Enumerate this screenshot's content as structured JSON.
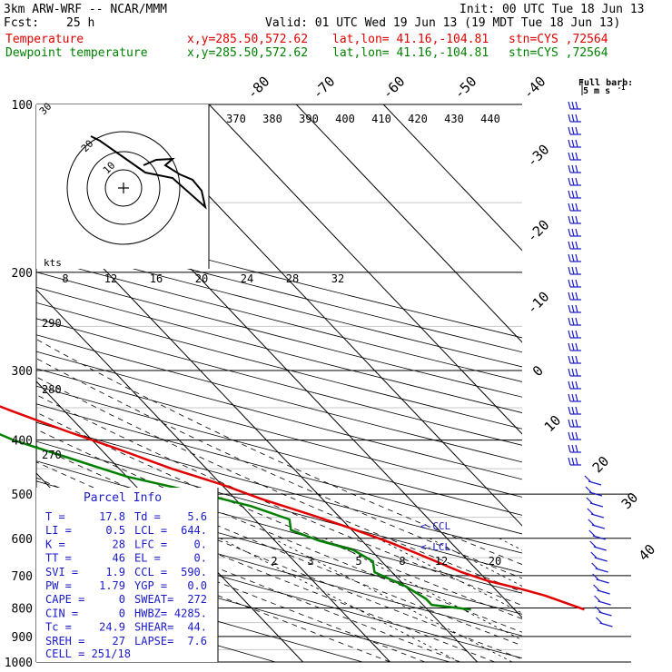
{
  "header": {
    "model": "3km ARW-WRF -- NCAR/MMM",
    "init": "Init: 00 UTC Tue 18 Jun 13",
    "fcst_label": "Fcst:",
    "fcst_value": "25 h",
    "valid": "Valid: 01 UTC Wed 19 Jun 13 (19 MDT Tue 18 Jun 13)",
    "temp_label": "Temperature",
    "dew_label": "Dewpoint temperature",
    "temp_xy": "x,y=285.50,572.62",
    "temp_latlon": "lat,lon= 41.16,-104.81",
    "temp_stn": "stn=CYS ,72564",
    "dew_xy": "x,y=285.50,572.62",
    "dew_latlon": "lat,lon= 41.16,-104.81",
    "dew_stn": "stn=CYS ,72564"
  },
  "colors": {
    "temperature": "#e00000",
    "dewpoint": "#008000",
    "barbs": "#1a1ac8",
    "grid": "#000000",
    "panel_text": "#1a1ac8"
  },
  "barb_legend": {
    "title": "Full barb:",
    "value": "5 m s",
    "exp": "-1"
  },
  "parcel_info": {
    "title": "Parcel Info",
    "rows": [
      [
        "T  =",
        "17.8",
        "Td =",
        "5.6"
      ],
      [
        "LI =",
        "0.5",
        "LCL =",
        "644."
      ],
      [
        "K  =",
        "28",
        "LFC =",
        "0."
      ],
      [
        "TT =",
        "46",
        "EL  =",
        "0."
      ],
      [
        "SVI =",
        "1.9",
        "CCL =",
        "590."
      ],
      [
        "PW =",
        "1.79",
        "YGP =",
        "0.0"
      ],
      [
        "CAPE =",
        "0",
        "SWEAT=",
        "272"
      ],
      [
        "CIN =",
        "0",
        "HWBZ=",
        "4285."
      ],
      [
        "Tc =",
        "24.9",
        "SHEAR=",
        "44."
      ],
      [
        "SREH =",
        "27",
        "LAPSE=",
        "7.6"
      ]
    ],
    "cell": "CELL = 251/18"
  },
  "markers": {
    "ccl": "<-CCL",
    "lcl": "<-LCL"
  },
  "hodograph": {
    "kts_label": "kts",
    "speed_labels": [
      "8",
      "12",
      "16",
      "20",
      "24",
      "28",
      "32"
    ],
    "ring_labels": [
      "30",
      "20",
      "10"
    ]
  },
  "theta_e_labels": [
    "370",
    "380",
    "390",
    "400",
    "410",
    "420",
    "430",
    "440"
  ],
  "mixing_ratio_labels": [
    "2",
    "3",
    "5",
    "8",
    "12",
    "20"
  ],
  "theta_labels": [
    "290",
    "280",
    "270"
  ],
  "chart_data": {
    "type": "line",
    "chart_kind": "skew-T log-p diagram",
    "y_axis": {
      "scale": "log",
      "reversed": true,
      "ylim": [
        1000,
        100
      ],
      "ticks": [
        100,
        200,
        300,
        400,
        500,
        600,
        700,
        800,
        900,
        1000
      ]
    },
    "isotherm_labels": [
      -80,
      -70,
      -60,
      -50,
      -40,
      -30,
      -20,
      -10,
      0,
      10,
      20,
      30,
      40
    ],
    "series": [
      {
        "name": "Temperature",
        "points": [
          [
            805,
            18
          ],
          [
            790,
            17
          ],
          [
            760,
            15
          ],
          [
            740,
            13
          ],
          [
            715,
            10
          ],
          [
            690,
            8
          ],
          [
            640,
            5
          ],
          [
            610,
            3
          ],
          [
            575,
            0
          ],
          [
            545,
            -3
          ],
          [
            510,
            -7
          ],
          [
            480,
            -10
          ],
          [
            450,
            -14
          ],
          [
            415,
            -18
          ],
          [
            385,
            -22
          ],
          [
            355,
            -26
          ],
          [
            325,
            -30
          ],
          [
            300,
            -34
          ],
          [
            275,
            -38
          ],
          [
            255,
            -42
          ],
          [
            240,
            -45
          ],
          [
            225,
            -48
          ],
          [
            205,
            -51
          ],
          [
            190,
            -50
          ],
          [
            175,
            -46
          ],
          [
            160,
            -44
          ],
          [
            145,
            -42
          ],
          [
            130,
            -40
          ],
          [
            115,
            -37
          ],
          [
            100,
            -34
          ]
        ]
      },
      {
        "name": "Dewpoint temperature",
        "points": [
          [
            805,
            5
          ],
          [
            790,
            1
          ],
          [
            770,
            1
          ],
          [
            730,
            0
          ],
          [
            690,
            -2
          ],
          [
            660,
            -1
          ],
          [
            630,
            -2
          ],
          [
            605,
            -5
          ],
          [
            580,
            -7
          ],
          [
            555,
            -6
          ],
          [
            525,
            -9
          ],
          [
            495,
            -14
          ],
          [
            465,
            -20
          ],
          [
            435,
            -24
          ],
          [
            400,
            -29
          ],
          [
            380,
            -31
          ],
          [
            355,
            -30
          ],
          [
            330,
            -32
          ],
          [
            305,
            -34
          ],
          [
            285,
            -38
          ],
          [
            265,
            -42
          ],
          [
            245,
            -47
          ],
          [
            225,
            -52
          ],
          [
            205,
            -57
          ],
          [
            190,
            -62
          ],
          [
            175,
            -64
          ],
          [
            155,
            -68
          ],
          [
            135,
            -71
          ],
          [
            115,
            -74
          ],
          [
            100,
            -75
          ]
        ]
      }
    ],
    "wind_barbs_column": "right edge, blue, 100-850 hPa"
  }
}
